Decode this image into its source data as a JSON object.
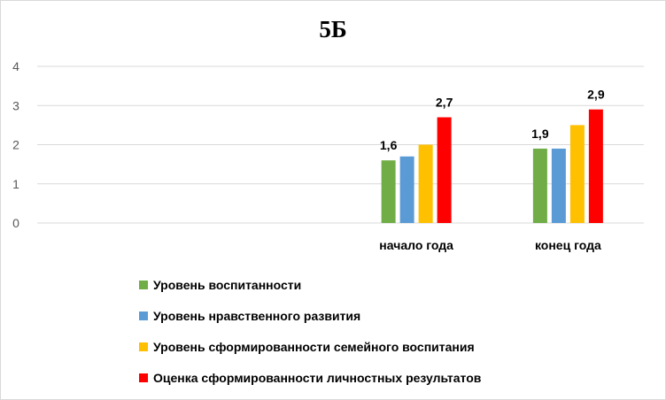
{
  "chart_data": {
    "type": "bar",
    "title": "5Б",
    "xlabel": "",
    "ylabel": "",
    "ylim": [
      0,
      4
    ],
    "yticks": [
      "0",
      "1",
      "2",
      "3",
      "4"
    ],
    "grid": true,
    "legend_position": "bottom",
    "categories": [
      "",
      "",
      "начало года",
      "конец года"
    ],
    "series": [
      {
        "name": "Уровень воспитанности",
        "color": "#70ad47",
        "values": [
          null,
          null,
          1.6,
          1.9
        ]
      },
      {
        "name": "Уровень нравственного развития",
        "color": "#5b9bd5",
        "values": [
          null,
          null,
          1.7,
          1.9
        ]
      },
      {
        "name": "Уровень сформированности семейного воспитания",
        "color": "#ffc000",
        "values": [
          null,
          null,
          2.0,
          2.5
        ]
      },
      {
        "name": "Оценка сформированности личностных результатов",
        "color": "#ff0000",
        "values": [
          null,
          null,
          2.7,
          2.9
        ]
      }
    ],
    "data_labels": [
      {
        "series": 0,
        "category": 2,
        "text": "1,6"
      },
      {
        "series": 3,
        "category": 2,
        "text": "2,7"
      },
      {
        "series": 0,
        "category": 3,
        "text": "1,9"
      },
      {
        "series": 3,
        "category": 3,
        "text": "2,9"
      }
    ]
  }
}
